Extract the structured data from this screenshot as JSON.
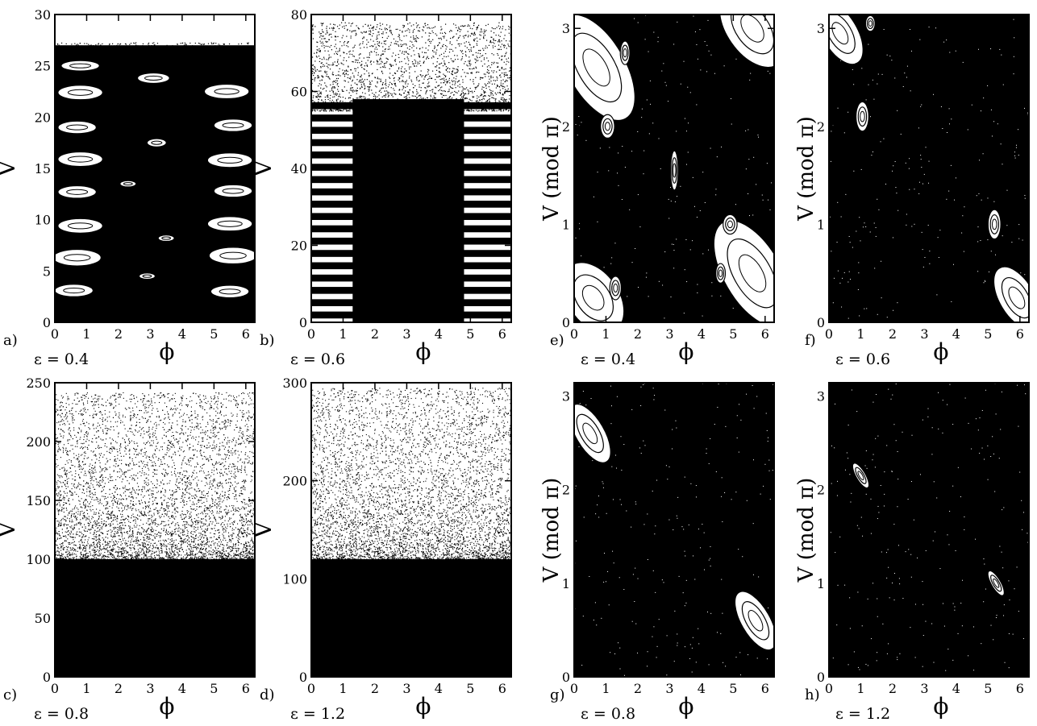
{
  "figure": {
    "description_text": [],
    "colors": {
      "points": "#000000",
      "background": "#ffffff",
      "frame": "#000000"
    }
  },
  "chart_data": [
    {
      "id": "a",
      "type": "scatter",
      "panel_label": "a)",
      "epsilon_label": "ε = 0.4",
      "xlabel": "ϕ",
      "ylabel": "V",
      "xlim": [
        0,
        6.283
      ],
      "ylim": [
        0,
        30
      ],
      "xticks": [
        "0",
        "1",
        "2",
        "3",
        "4",
        "5",
        "6"
      ],
      "yticks": [
        "0",
        "5",
        "10",
        "15",
        "20",
        "25",
        "30"
      ],
      "ytick_values": [
        0,
        5,
        10,
        15,
        20,
        25,
        30
      ],
      "points_description": "Poincaré section: chaotic sea with many elliptic island chains",
      "chaos_top_V": 27,
      "islands": [
        {
          "phi": 0.7,
          "V": 6.3,
          "rx": 0.75,
          "ry": 0.8
        },
        {
          "phi": 5.6,
          "V": 6.5,
          "rx": 0.75,
          "ry": 0.8
        },
        {
          "phi": 0.6,
          "V": 3.1,
          "rx": 0.6,
          "ry": 0.6
        },
        {
          "phi": 5.5,
          "V": 3.0,
          "rx": 0.6,
          "ry": 0.6
        },
        {
          "phi": 0.8,
          "V": 9.4,
          "rx": 0.7,
          "ry": 0.7
        },
        {
          "phi": 5.5,
          "V": 9.6,
          "rx": 0.7,
          "ry": 0.7
        },
        {
          "phi": 0.7,
          "V": 12.7,
          "rx": 0.6,
          "ry": 0.6
        },
        {
          "phi": 5.6,
          "V": 12.8,
          "rx": 0.6,
          "ry": 0.6
        },
        {
          "phi": 0.8,
          "V": 15.9,
          "rx": 0.7,
          "ry": 0.7
        },
        {
          "phi": 5.5,
          "V": 15.8,
          "rx": 0.7,
          "ry": 0.7
        },
        {
          "phi": 0.7,
          "V": 19.0,
          "rx": 0.6,
          "ry": 0.6
        },
        {
          "phi": 5.6,
          "V": 19.2,
          "rx": 0.6,
          "ry": 0.6
        },
        {
          "phi": 0.8,
          "V": 22.4,
          "rx": 0.7,
          "ry": 0.7
        },
        {
          "phi": 5.4,
          "V": 22.5,
          "rx": 0.7,
          "ry": 0.7
        },
        {
          "phi": 0.8,
          "V": 25.0,
          "rx": 0.6,
          "ry": 0.5
        },
        {
          "phi": 3.1,
          "V": 23.8,
          "rx": 0.5,
          "ry": 0.5
        },
        {
          "phi": 3.2,
          "V": 17.5,
          "rx": 0.3,
          "ry": 0.4
        },
        {
          "phi": 2.3,
          "V": 13.5,
          "rx": 0.25,
          "ry": 0.3
        },
        {
          "phi": 3.5,
          "V": 8.2,
          "rx": 0.25,
          "ry": 0.3
        },
        {
          "phi": 2.9,
          "V": 4.5,
          "rx": 0.25,
          "ry": 0.3
        }
      ]
    },
    {
      "id": "b",
      "type": "scatter",
      "panel_label": "b)",
      "epsilon_label": "ε = 0.6",
      "xlabel": "ϕ",
      "ylabel": "V",
      "xlim": [
        0,
        6.283
      ],
      "ylim": [
        0,
        80
      ],
      "xticks": [
        "0",
        "1",
        "2",
        "3",
        "4",
        "5",
        "6"
      ],
      "yticks": [
        "0",
        "20",
        "40",
        "60",
        "80"
      ],
      "ytick_values": [
        0,
        20,
        40,
        60,
        80
      ],
      "points_description": "Dense chaotic core between phi 1.3 and 4.8 below V ≈ 60 with striped side bands",
      "chaos_top_V": 78
    },
    {
      "id": "c",
      "type": "scatter",
      "panel_label": "c)",
      "epsilon_label": "ε = 0.8",
      "xlabel": "ϕ",
      "ylabel": "V",
      "xlim": [
        0,
        6.283
      ],
      "ylim": [
        0,
        250
      ],
      "xticks": [
        "0",
        "1",
        "2",
        "3",
        "4",
        "5",
        "6"
      ],
      "yticks": [
        "0",
        "50",
        "100",
        "150",
        "200",
        "250"
      ],
      "ytick_values": [
        0,
        50,
        100,
        150,
        200,
        250
      ],
      "points_description": "Fully chaotic; density decreasing with V",
      "chaos_top_V": 242
    },
    {
      "id": "d",
      "type": "scatter",
      "panel_label": "d)",
      "epsilon_label": "ε = 1.2",
      "xlabel": "ϕ",
      "ylabel": "V",
      "xlim": [
        0,
        6.283
      ],
      "ylim": [
        0,
        300
      ],
      "xticks": [
        "0",
        "1",
        "2",
        "3",
        "4",
        "5",
        "6"
      ],
      "yticks": [
        "0",
        "100",
        "200",
        "300"
      ],
      "ytick_values": [
        0,
        100,
        200,
        300
      ],
      "points_description": "Fully chaotic; density decreasing with V",
      "chaos_top_V": 295
    },
    {
      "id": "e",
      "type": "scatter",
      "panel_label": "e)",
      "epsilon_label": "ε = 0.4",
      "xlabel": "ϕ",
      "ylabel": "V (mod π)",
      "xlim": [
        0,
        6.283
      ],
      "ylim": [
        0,
        3.1416
      ],
      "xticks": [
        "0",
        "1",
        "2",
        "3",
        "4",
        "5",
        "6"
      ],
      "yticks": [
        "0",
        "1",
        "2",
        "3"
      ],
      "ytick_values": [
        0,
        1,
        2,
        3
      ],
      "points_description": "Chaotic sea with large elliptic islands at corners",
      "islands": [
        {
          "phi": 0.7,
          "V": 2.6,
          "rx": 0.9,
          "ry": 0.6,
          "rot": -30
        },
        {
          "phi": 5.6,
          "V": 0.5,
          "rx": 0.9,
          "ry": 0.6,
          "rot": -30
        },
        {
          "phi": 5.6,
          "V": 3.0,
          "rx": 0.8,
          "ry": 0.45,
          "rot": -35
        },
        {
          "phi": 0.6,
          "V": 0.25,
          "rx": 0.8,
          "ry": 0.4,
          "rot": -35
        },
        {
          "phi": 1.05,
          "V": 2.0,
          "rx": 0.22,
          "ry": 0.12,
          "rot": 0
        },
        {
          "phi": 4.9,
          "V": 1.0,
          "rx": 0.22,
          "ry": 0.1,
          "rot": 0
        },
        {
          "phi": 1.3,
          "V": 0.35,
          "rx": 0.18,
          "ry": 0.12,
          "rot": 0
        },
        {
          "phi": 4.6,
          "V": 0.5,
          "rx": 0.15,
          "ry": 0.1,
          "rot": 0
        },
        {
          "phi": 1.6,
          "V": 2.75,
          "rx": 0.15,
          "ry": 0.12,
          "rot": 0
        },
        {
          "phi": 3.15,
          "V": 1.55,
          "rx": 0.12,
          "ry": 0.2,
          "rot": 0
        }
      ]
    },
    {
      "id": "f",
      "type": "scatter",
      "panel_label": "f)",
      "epsilon_label": "ε = 0.6",
      "xlabel": "ϕ",
      "ylabel": "V (mod π)",
      "xlim": [
        0,
        6.283
      ],
      "ylim": [
        0,
        3.1416
      ],
      "xticks": [
        "0",
        "1",
        "2",
        "3",
        "4",
        "5",
        "6"
      ],
      "yticks": [
        "0",
        "1",
        "2",
        "3"
      ],
      "ytick_values": [
        0,
        1,
        2,
        3
      ],
      "points_description": "Mostly chaotic with small islands",
      "islands": [
        {
          "phi": 0.35,
          "V": 2.95,
          "rx": 0.55,
          "ry": 0.35,
          "rot": -30
        },
        {
          "phi": 5.9,
          "V": 0.25,
          "rx": 0.55,
          "ry": 0.35,
          "rot": -30
        },
        {
          "phi": 1.05,
          "V": 2.1,
          "rx": 0.2,
          "ry": 0.15,
          "rot": 0
        },
        {
          "phi": 5.2,
          "V": 1.0,
          "rx": 0.2,
          "ry": 0.15,
          "rot": 0
        },
        {
          "phi": 1.3,
          "V": 3.05,
          "rx": 0.15,
          "ry": 0.08,
          "rot": 0
        }
      ]
    },
    {
      "id": "g",
      "type": "scatter",
      "panel_label": "g)",
      "epsilon_label": "ε = 0.8",
      "xlabel": "ϕ",
      "ylabel": "V (mod π)",
      "xlim": [
        0,
        6.283
      ],
      "ylim": [
        0,
        3.1416
      ],
      "xticks": [
        "0",
        "1",
        "2",
        "3",
        "4",
        "5",
        "6"
      ],
      "yticks": [
        "0",
        "1",
        "2",
        "3"
      ],
      "ytick_values": [
        0,
        1,
        2,
        3
      ],
      "points_description": "Mostly chaotic with two elliptic islands",
      "islands": [
        {
          "phi": 0.5,
          "V": 2.6,
          "rx": 0.45,
          "ry": 0.35,
          "rot": -30
        },
        {
          "phi": 5.7,
          "V": 0.6,
          "rx": 0.45,
          "ry": 0.35,
          "rot": -30
        }
      ]
    },
    {
      "id": "h",
      "type": "scatter",
      "panel_label": "h)",
      "epsilon_label": "ε = 1.2",
      "xlabel": "ϕ",
      "ylabel": "V (mod π)",
      "xlim": [
        0,
        6.283
      ],
      "ylim": [
        0,
        3.1416
      ],
      "xticks": [
        "0",
        "1",
        "2",
        "3",
        "4",
        "5",
        "6"
      ],
      "yticks": [
        "0",
        "1",
        "2",
        "3"
      ],
      "ytick_values": [
        0,
        1,
        2,
        3
      ],
      "points_description": "Nearly fully chaotic with two tiny islands",
      "islands": [
        {
          "phi": 1.0,
          "V": 2.15,
          "rx": 0.15,
          "ry": 0.15,
          "rot": -30
        },
        {
          "phi": 5.25,
          "V": 1.0,
          "rx": 0.15,
          "ry": 0.15,
          "rot": -30
        }
      ]
    }
  ]
}
